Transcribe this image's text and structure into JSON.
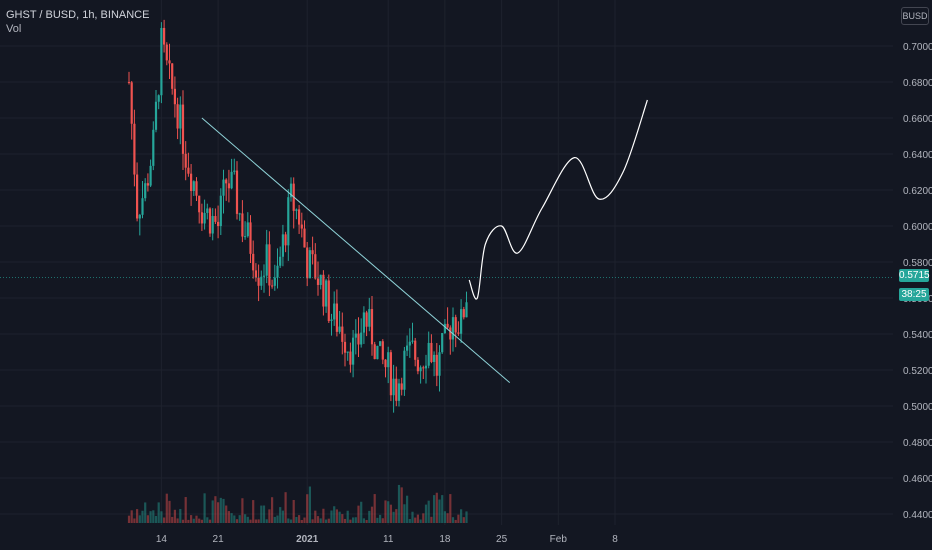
{
  "header": {
    "symbol_line": "GHST / BUSD, 1h, BINANCE",
    "volume_label": "Vol"
  },
  "currency_label": "BUSD",
  "price_tag": "0.5715",
  "countdown_tag": "38:25",
  "colors": {
    "background": "#131722",
    "grid": "#1e222d",
    "up": "#26a69a",
    "down": "#ef5350",
    "trendline": "#8fd3d8",
    "projection": "#ffffff",
    "axis_text": "#b2b5be"
  },
  "chart_data": {
    "type": "candlestick",
    "title": "GHST / BUSD, 1h, BINANCE",
    "y_axis": {
      "ticks": [
        "0.7000",
        "0.6800",
        "0.6600",
        "0.6400",
        "0.6200",
        "0.6000",
        "0.5800",
        "0.5600",
        "0.5400",
        "0.5200",
        "0.5000",
        "0.4800",
        "0.4600",
        "0.4400"
      ],
      "range": [
        0.435,
        0.7225
      ],
      "position": "right"
    },
    "x_axis": {
      "ticks": [
        "14",
        "21",
        "2021",
        "11",
        "18",
        "25",
        "Feb",
        "8"
      ]
    },
    "grid": true,
    "series_approx_close": [
      {
        "x": "Dec 10",
        "y": 0.68
      },
      {
        "x": "Dec 11",
        "y": 0.61
      },
      {
        "x": "Dec 12",
        "y": 0.62
      },
      {
        "x": "Dec 13",
        "y": 0.645
      },
      {
        "x": "Dec 14",
        "y": 0.7
      },
      {
        "x": "Dec 15",
        "y": 0.68
      },
      {
        "x": "Dec 16",
        "y": 0.665
      },
      {
        "x": "Dec 17",
        "y": 0.64
      },
      {
        "x": "Dec 18",
        "y": 0.625
      },
      {
        "x": "Dec 19",
        "y": 0.61
      },
      {
        "x": "Dec 20",
        "y": 0.605
      },
      {
        "x": "Dec 21",
        "y": 0.6
      },
      {
        "x": "Dec 22",
        "y": 0.625
      },
      {
        "x": "Dec 23",
        "y": 0.62
      },
      {
        "x": "Dec 24",
        "y": 0.6
      },
      {
        "x": "Dec 25",
        "y": 0.59
      },
      {
        "x": "Dec 26",
        "y": 0.575
      },
      {
        "x": "Dec 27",
        "y": 0.58
      },
      {
        "x": "Dec 28",
        "y": 0.565
      },
      {
        "x": "Dec 29",
        "y": 0.59
      },
      {
        "x": "Dec 30",
        "y": 0.615
      },
      {
        "x": "Dec 31",
        "y": 0.605
      },
      {
        "x": "Jan 1",
        "y": 0.58
      },
      {
        "x": "Jan 2",
        "y": 0.575
      },
      {
        "x": "Jan 3",
        "y": 0.565
      },
      {
        "x": "Jan 4",
        "y": 0.55
      },
      {
        "x": "Jan 5",
        "y": 0.545
      },
      {
        "x": "Jan 6",
        "y": 0.535
      },
      {
        "x": "Jan 7",
        "y": 0.53
      },
      {
        "x": "Jan 8",
        "y": 0.55
      },
      {
        "x": "Jan 9",
        "y": 0.54
      },
      {
        "x": "Jan 10",
        "y": 0.525
      },
      {
        "x": "Jan 11",
        "y": 0.52
      },
      {
        "x": "Jan 12",
        "y": 0.51
      },
      {
        "x": "Jan 13",
        "y": 0.525
      },
      {
        "x": "Jan 14",
        "y": 0.53
      },
      {
        "x": "Jan 15",
        "y": 0.525
      },
      {
        "x": "Jan 16",
        "y": 0.535
      },
      {
        "x": "Jan 17",
        "y": 0.52
      },
      {
        "x": "Jan 18",
        "y": 0.535
      },
      {
        "x": "Jan 19",
        "y": 0.55
      },
      {
        "x": "Jan 20",
        "y": 0.545
      },
      {
        "x": "Jan 21",
        "y": 0.5715
      }
    ],
    "trendline": [
      {
        "x": "Dec 19",
        "y": 0.66
      },
      {
        "x": "Jan 26",
        "y": 0.513
      }
    ],
    "projection": [
      {
        "x": "Jan 21",
        "y": 0.57
      },
      {
        "x": "Jan 22",
        "y": 0.56
      },
      {
        "x": "Jan 23",
        "y": 0.59
      },
      {
        "x": "Jan 25",
        "y": 0.6
      },
      {
        "x": "Jan 27",
        "y": 0.585
      },
      {
        "x": "Jan 30",
        "y": 0.61
      },
      {
        "x": "Feb 3",
        "y": 0.638
      },
      {
        "x": "Feb 6",
        "y": 0.615
      },
      {
        "x": "Feb 9",
        "y": 0.63
      },
      {
        "x": "Feb 12",
        "y": 0.67
      }
    ],
    "current_price": 0.5715
  }
}
